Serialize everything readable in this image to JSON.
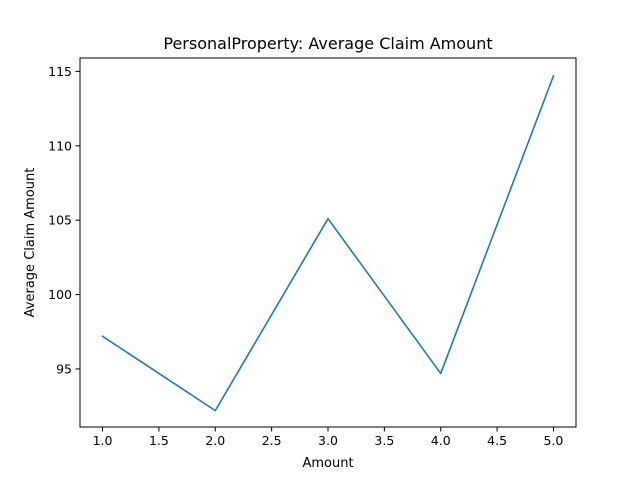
{
  "chart_data": {
    "type": "line",
    "title": "PersonalProperty: Average Claim Amount",
    "xlabel": "Amount",
    "ylabel": "Average Claim Amount",
    "x": [
      1.0,
      2.0,
      3.0,
      4.0,
      5.0
    ],
    "series": [
      {
        "values": [
          97.2,
          92.2,
          105.1,
          94.7,
          114.7
        ],
        "color": "#1f77b4"
      }
    ],
    "xlim": [
      0.8,
      5.2
    ],
    "ylim": [
      91.1,
      115.9
    ],
    "xticks": [
      1.0,
      1.5,
      2.0,
      2.5,
      3.0,
      3.5,
      4.0,
      4.5,
      5.0
    ],
    "xtick_labels": [
      "1.0",
      "1.5",
      "2.0",
      "2.5",
      "3.0",
      "3.5",
      "4.0",
      "4.5",
      "5.0"
    ],
    "yticks": [
      95,
      100,
      105,
      110,
      115
    ],
    "ytick_labels": [
      "95",
      "100",
      "105",
      "110",
      "115"
    ],
    "grid": false,
    "legend": false
  }
}
